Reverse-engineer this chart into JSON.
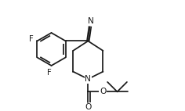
{
  "bg_color": "#ffffff",
  "line_color": "#1a1a1a",
  "line_width": 1.25,
  "font_size": 7.2,
  "font_color": "#1a1a1a",
  "figsize": [
    2.36,
    1.42
  ],
  "dpi": 100,
  "xlim": [
    0,
    236
  ],
  "ylim": [
    0,
    142
  ]
}
